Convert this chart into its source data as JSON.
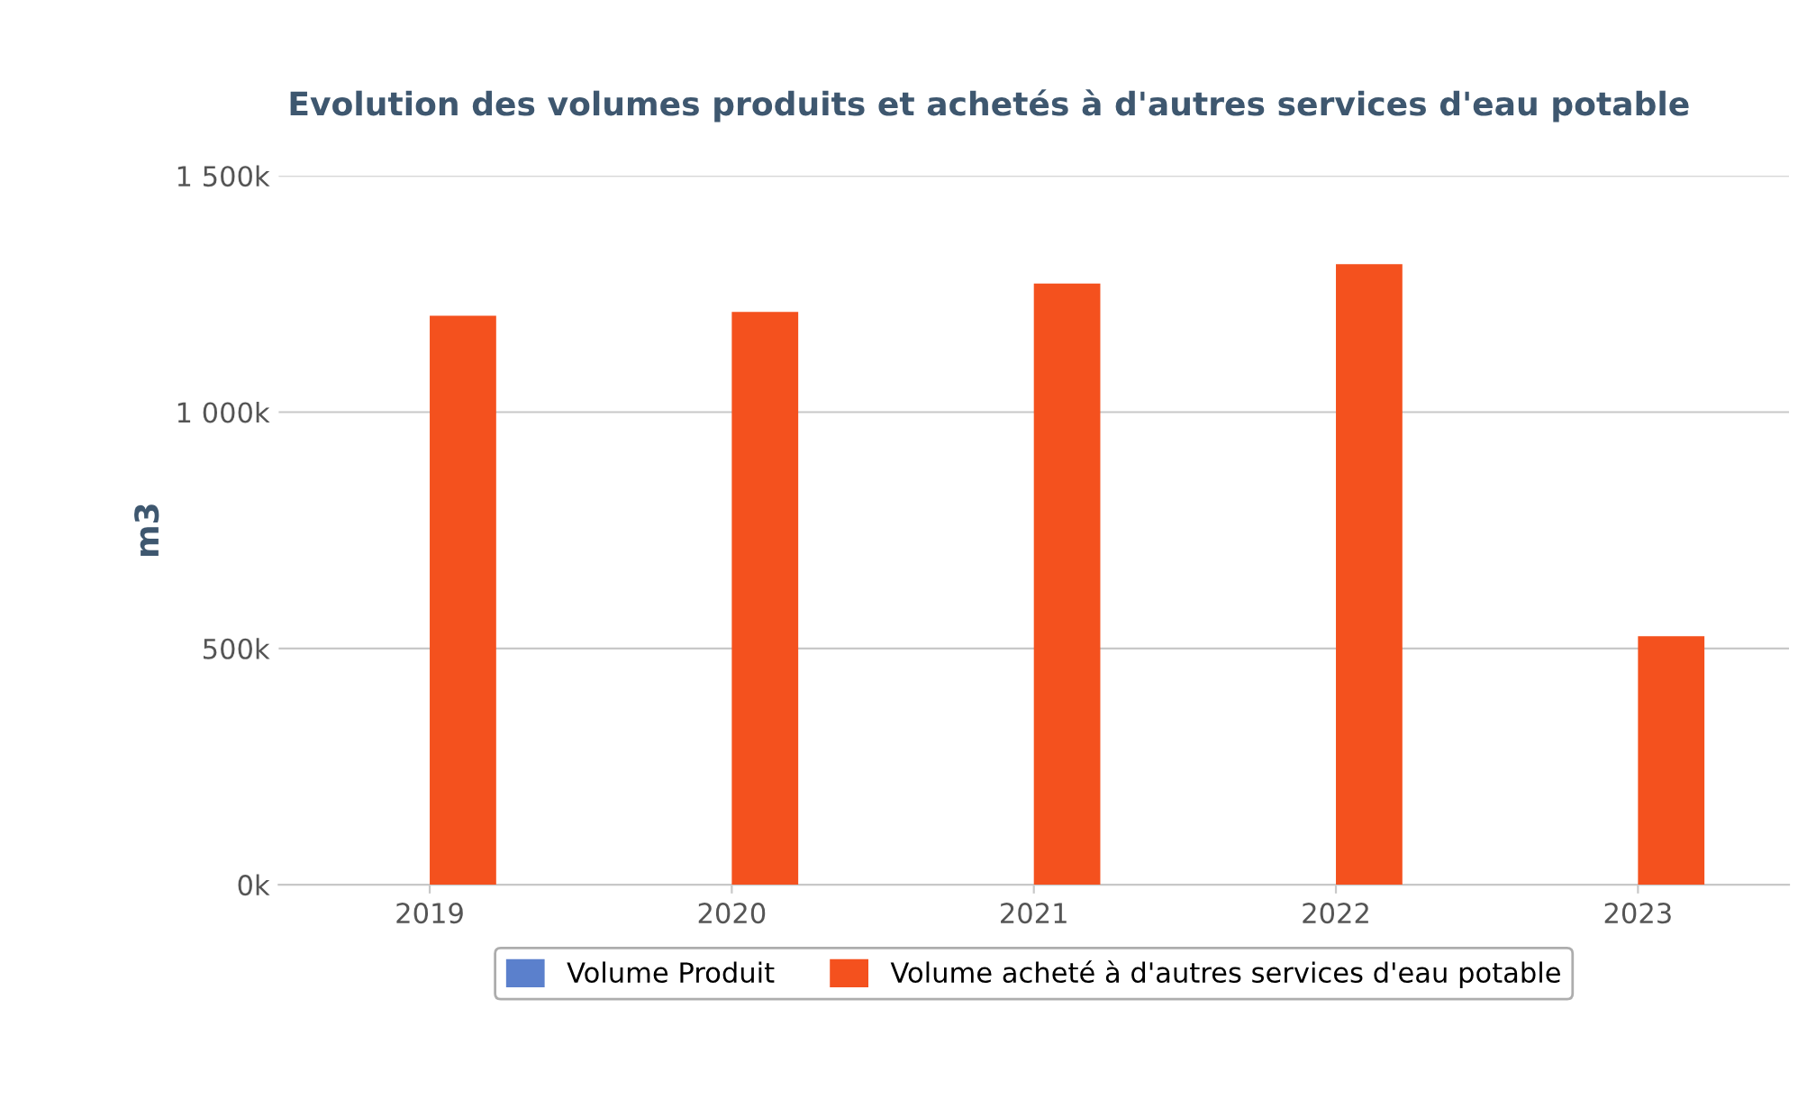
{
  "chart_data": {
    "type": "bar",
    "title": "Evolution des volumes produits et achetés à d'autres services d'eau potable",
    "ylabel": "m3",
    "categories": [
      "2019",
      "2020",
      "2021",
      "2022",
      "2023"
    ],
    "series": [
      {
        "name": "Volume Produit",
        "color": "#5b80cc",
        "values": [
          0,
          0,
          0,
          0,
          0
        ]
      },
      {
        "name": "Volume acheté à d'autres services d'eau potable",
        "color": "#f4511e",
        "values": [
          1204000,
          1212000,
          1272000,
          1313000,
          526000
        ]
      }
    ],
    "ylim": [
      0,
      1500000
    ],
    "yticks": [
      {
        "value": 0,
        "label": "0k"
      },
      {
        "value": 500000,
        "label": "500k"
      },
      {
        "value": 1000000,
        "label": "1 000k"
      },
      {
        "value": 1500000,
        "label": "1 500k"
      }
    ],
    "grid": "y",
    "legend": "bottom"
  }
}
